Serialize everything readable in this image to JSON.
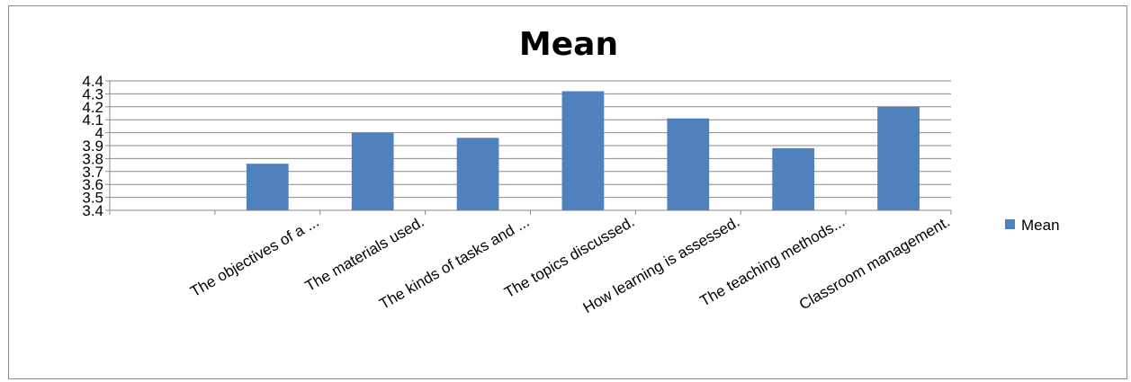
{
  "chart_data": {
    "type": "bar",
    "title": "Mean",
    "xlabel": "",
    "ylabel": "",
    "categories": [
      "",
      "The objectives of a ...",
      "The materials used.",
      "The kinds of tasks and ...",
      "The topics discussed.",
      "How learning is assessed.",
      "The teaching methods...",
      "Classroom management."
    ],
    "series": [
      {
        "name": "Mean",
        "values": [
          null,
          3.76,
          4.0,
          3.96,
          4.32,
          4.11,
          3.88,
          4.2
        ],
        "color": "#4f81bd"
      }
    ],
    "yticks": [
      "3.4",
      "3.5",
      "3.6",
      "3.7",
      "3.8",
      "3.9",
      "4",
      "4.1",
      "4.2",
      "4.3",
      "4.4"
    ],
    "ylim": [
      3.4,
      4.4
    ],
    "grid": true,
    "legend": "right"
  }
}
